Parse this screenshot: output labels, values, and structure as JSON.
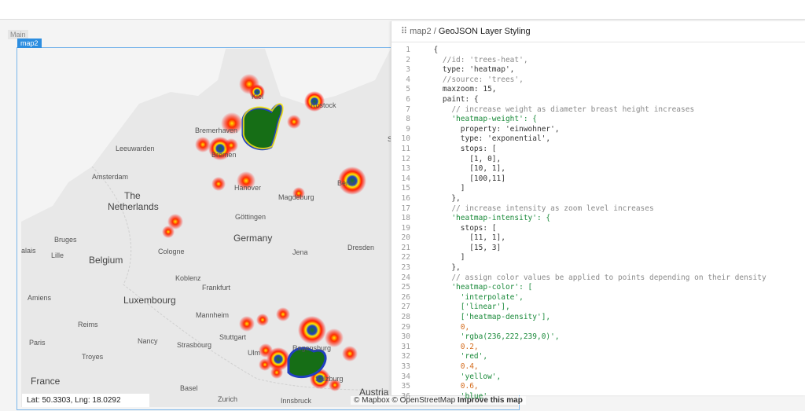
{
  "tab": "Main",
  "map_label": "map2",
  "breadcrumb": {
    "parent": "map2",
    "separator": "/",
    "current": "GeoJSON Layer Styling"
  },
  "map": {
    "places": [
      "Kiel",
      "Rostock",
      "Bremerhaven",
      "Leeuwarden",
      "Szc",
      "Amsterdam",
      "Bremen",
      "Hanover",
      "Berlin",
      "The",
      "Netherlands",
      "Magdeburg",
      "Göttingen",
      "Germany",
      "Bruges",
      "alais",
      "Lille",
      "Belgium",
      "Cologne",
      "Jena",
      "Dresden",
      "Koblenz",
      "Frankfurt",
      "Amiens",
      "Luxembourg",
      "Mannheim",
      "Reims",
      "Regensburg",
      "Stuttgart",
      "Nancy",
      "Strasbourg",
      "Paris",
      "Ulm",
      "Troyes",
      "France",
      "Basel",
      "Zurich",
      "Salzburg",
      "Innsbruck",
      "Austria"
    ],
    "coordinates": "Lat: 50.3303, Lng: 18.0292",
    "attribution": "© Mapbox © OpenStreetMap",
    "improve": "Improve this map"
  },
  "code": [
    {
      "n": "1",
      "text": "  {"
    },
    {
      "n": "2",
      "text": "    //id: 'trees-heat',"
    },
    {
      "n": "3",
      "text": "    type: 'heatmap',"
    },
    {
      "n": "4",
      "text": "    //source: 'trees',"
    },
    {
      "n": "5",
      "text": "    maxzoom: 15,"
    },
    {
      "n": "6",
      "text": "    paint: {"
    },
    {
      "n": "7",
      "text": "      // increase weight as diameter breast height increases"
    },
    {
      "n": "8",
      "text": "      'heatmap-weight': {"
    },
    {
      "n": "9",
      "text": "        property: 'einwohner',"
    },
    {
      "n": "10",
      "text": "        type: 'exponential',"
    },
    {
      "n": "11",
      "text": "        stops: ["
    },
    {
      "n": "12",
      "text": "          [1, 0],"
    },
    {
      "n": "13",
      "text": "          [10, 1],"
    },
    {
      "n": "14",
      "text": "          [100,11]"
    },
    {
      "n": "15",
      "text": "        ]"
    },
    {
      "n": "16",
      "text": "      },"
    },
    {
      "n": "17",
      "text": "      // increase intensity as zoom level increases"
    },
    {
      "n": "18",
      "text": "      'heatmap-intensity': {"
    },
    {
      "n": "19",
      "text": "        stops: ["
    },
    {
      "n": "20",
      "text": "          [11, 1],"
    },
    {
      "n": "21",
      "text": "          [15, 3]"
    },
    {
      "n": "22",
      "text": "        ]"
    },
    {
      "n": "23",
      "text": "      },"
    },
    {
      "n": "24",
      "text": "      // assign color values be applied to points depending on their density"
    },
    {
      "n": "25",
      "text": "      'heatmap-color': ["
    },
    {
      "n": "26",
      "text": "        'interpolate',"
    },
    {
      "n": "27",
      "text": "        ['linear'],"
    },
    {
      "n": "28",
      "text": "        ['heatmap-density'],"
    },
    {
      "n": "29",
      "text": "        0,"
    },
    {
      "n": "30",
      "text": "        'rgba(236,222,239,0)',"
    },
    {
      "n": "31",
      "text": "        0.2,"
    },
    {
      "n": "32",
      "text": "        'red',"
    },
    {
      "n": "33",
      "text": "        0.4,"
    },
    {
      "n": "34",
      "text": "        'yellow',"
    },
    {
      "n": "35",
      "text": "        0.6,"
    },
    {
      "n": "36",
      "text": "        'blue'"
    }
  ]
}
